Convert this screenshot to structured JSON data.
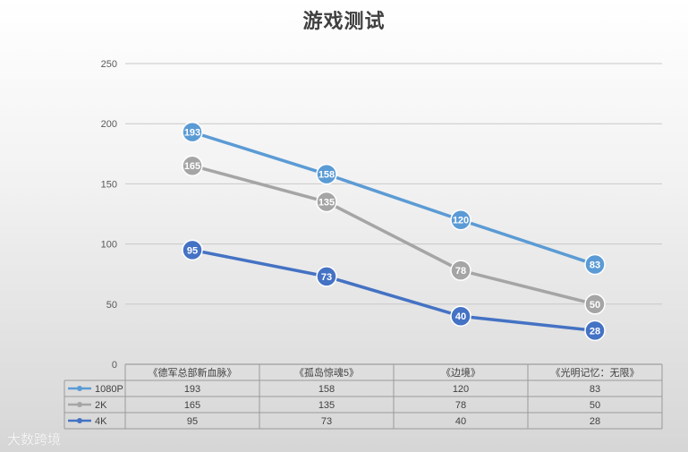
{
  "chart_data": {
    "type": "line",
    "title": "游戏测试",
    "categories": [
      "《德军总部新血脉》",
      "《孤岛惊魂5》",
      "《边境》",
      "《光明记忆：无限》"
    ],
    "ylim": [
      0,
      250
    ],
    "yticks": [
      0,
      50,
      100,
      150,
      200,
      250
    ],
    "grid": true,
    "legend": "data-table-bottom",
    "series": [
      {
        "name": "1080P",
        "values": [
          193,
          158,
          120,
          83
        ],
        "color": "#5b9bd5"
      },
      {
        "name": "2K",
        "values": [
          165,
          135,
          78,
          50
        ],
        "color": "#a5a5a5"
      },
      {
        "name": "4K",
        "values": [
          95,
          73,
          40,
          28
        ],
        "color": "#4472c4"
      }
    ]
  },
  "watermark": "大数跨境"
}
